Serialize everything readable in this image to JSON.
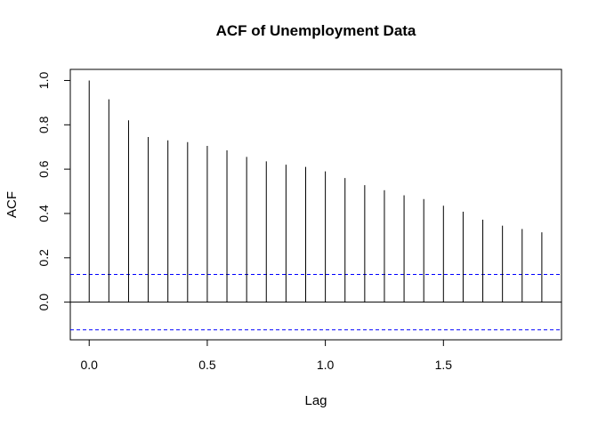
{
  "chart_data": {
    "type": "bar",
    "title": "ACF of Unemployment Data",
    "xlabel": "Lag",
    "ylabel": "ACF",
    "xlim": [
      -0.08,
      2.0
    ],
    "ylim": [
      -0.17,
      1.05
    ],
    "x_ticks": [
      {
        "value": 0.0,
        "label": "0.0"
      },
      {
        "value": 0.5,
        "label": "0.5"
      },
      {
        "value": 1.0,
        "label": "1.0"
      },
      {
        "value": 1.5,
        "label": "1.5"
      }
    ],
    "y_ticks": [
      {
        "value": 0.0,
        "label": "0.0"
      },
      {
        "value": 0.2,
        "label": "0.2"
      },
      {
        "value": 0.4,
        "label": "0.4"
      },
      {
        "value": 0.6,
        "label": "0.6"
      },
      {
        "value": 0.8,
        "label": "0.8"
      },
      {
        "value": 1.0,
        "label": "1.0"
      }
    ],
    "lags": [
      0.0,
      0.0833,
      0.1667,
      0.25,
      0.3333,
      0.4167,
      0.5,
      0.5833,
      0.6667,
      0.75,
      0.8333,
      0.9167,
      1.0,
      1.0833,
      1.1667,
      1.25,
      1.3333,
      1.4167,
      1.5,
      1.5833,
      1.6667,
      1.75,
      1.8333,
      1.9167
    ],
    "values": [
      1.0,
      0.915,
      0.82,
      0.745,
      0.73,
      0.722,
      0.705,
      0.685,
      0.655,
      0.635,
      0.62,
      0.61,
      0.59,
      0.56,
      0.528,
      0.505,
      0.482,
      0.465,
      0.435,
      0.408,
      0.372,
      0.345,
      0.33,
      0.315
    ],
    "confidence_bound": 0.125,
    "confidence_color": "#0000ff",
    "grid": false
  }
}
